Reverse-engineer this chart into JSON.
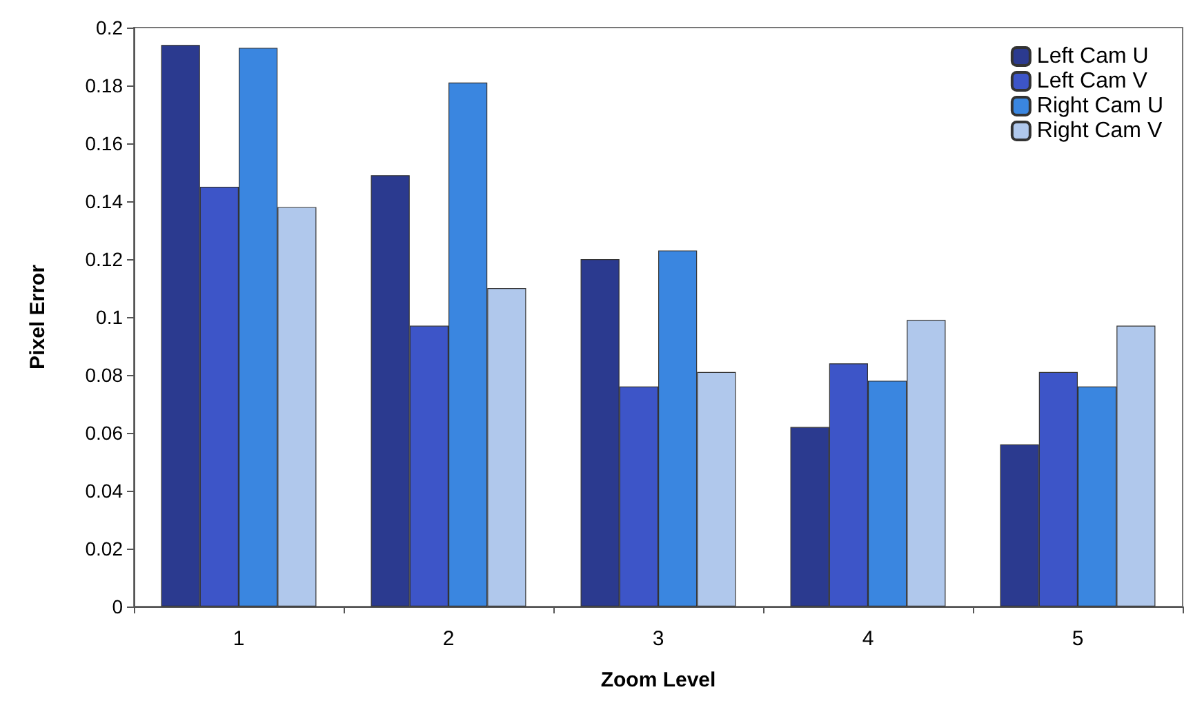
{
  "chart_data": {
    "type": "bar",
    "xlabel": "Zoom Level",
    "ylabel": "Pixel Error",
    "categories": [
      "1",
      "2",
      "3",
      "4",
      "5"
    ],
    "series": [
      {
        "name": "Left Cam U",
        "color": "#2b3a8f",
        "values": [
          0.194,
          0.149,
          0.12,
          0.062,
          0.056
        ]
      },
      {
        "name": "Left Cam V",
        "color": "#3d55c8",
        "values": [
          0.145,
          0.097,
          0.076,
          0.084,
          0.081
        ]
      },
      {
        "name": "Right Cam U",
        "color": "#3a86e0",
        "values": [
          0.193,
          0.181,
          0.123,
          0.078,
          0.076
        ]
      },
      {
        "name": "Right Cam V",
        "color": "#b0c8ec",
        "values": [
          0.138,
          0.11,
          0.081,
          0.099,
          0.097
        ]
      }
    ],
    "ylim": [
      0,
      0.2
    ],
    "yticks": [
      0,
      0.02,
      0.04,
      0.06,
      0.08,
      0.1,
      0.12,
      0.14,
      0.16,
      0.18,
      0.2
    ],
    "grid": false,
    "legend": "top right"
  }
}
